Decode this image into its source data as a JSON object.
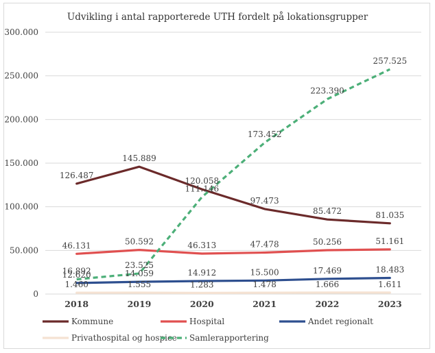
{
  "chart_data": {
    "type": "line",
    "title": "Udvikling i antal rapporterede UTH fordelt på lokationsgrupper",
    "xlabel": "",
    "ylabel": "",
    "categories": [
      "2018",
      "2019",
      "2020",
      "2021",
      "2022",
      "2023"
    ],
    "ylim": [
      0,
      300000
    ],
    "yticks": [
      0,
      50000,
      100000,
      150000,
      200000,
      250000,
      300000
    ],
    "ytick_labels": [
      "0",
      "50.000",
      "100.000",
      "150.000",
      "200.000",
      "250.000",
      "300.000"
    ],
    "grid": true,
    "legend_position": "bottom",
    "series": [
      {
        "name": "Kommune",
        "color": "#6b2a2a",
        "dashed": false,
        "values": [
          126487,
          145889,
          120058,
          97473,
          85472,
          81035
        ],
        "labels": [
          "126.487",
          "145.889",
          "120.058",
          "97.473",
          "85.472",
          "81.035"
        ]
      },
      {
        "name": "Hospital",
        "color": "#e05050",
        "dashed": false,
        "values": [
          46131,
          50592,
          46313,
          47478,
          50256,
          51161
        ],
        "labels": [
          "46.131",
          "50.592",
          "46.313",
          "47.478",
          "50.256",
          "51.161"
        ]
      },
      {
        "name": "Andet regionalt",
        "color": "#2e4f8f",
        "dashed": false,
        "values": [
          12620,
          14059,
          14912,
          15500,
          17469,
          18483
        ],
        "labels": [
          "12.620",
          "14.059",
          "14.912",
          "15.500",
          "17.469",
          "18.483"
        ]
      },
      {
        "name": "Privathospital og hospice",
        "color": "#f5e2d2",
        "dashed": false,
        "values": [
          1460,
          1555,
          1283,
          1478,
          1666,
          1611
        ],
        "labels": [
          "1.460",
          "1.555",
          "1.283",
          "1.478",
          "1.666",
          "1.611"
        ]
      },
      {
        "name": "Samlerapportering",
        "color": "#4caf78",
        "dashed": true,
        "values": [
          16892,
          23525,
          111146,
          173452,
          223390,
          257525
        ],
        "labels": [
          "16.892",
          "23.525",
          "111.146",
          "173.452",
          "223.390",
          "257.525"
        ]
      }
    ]
  }
}
